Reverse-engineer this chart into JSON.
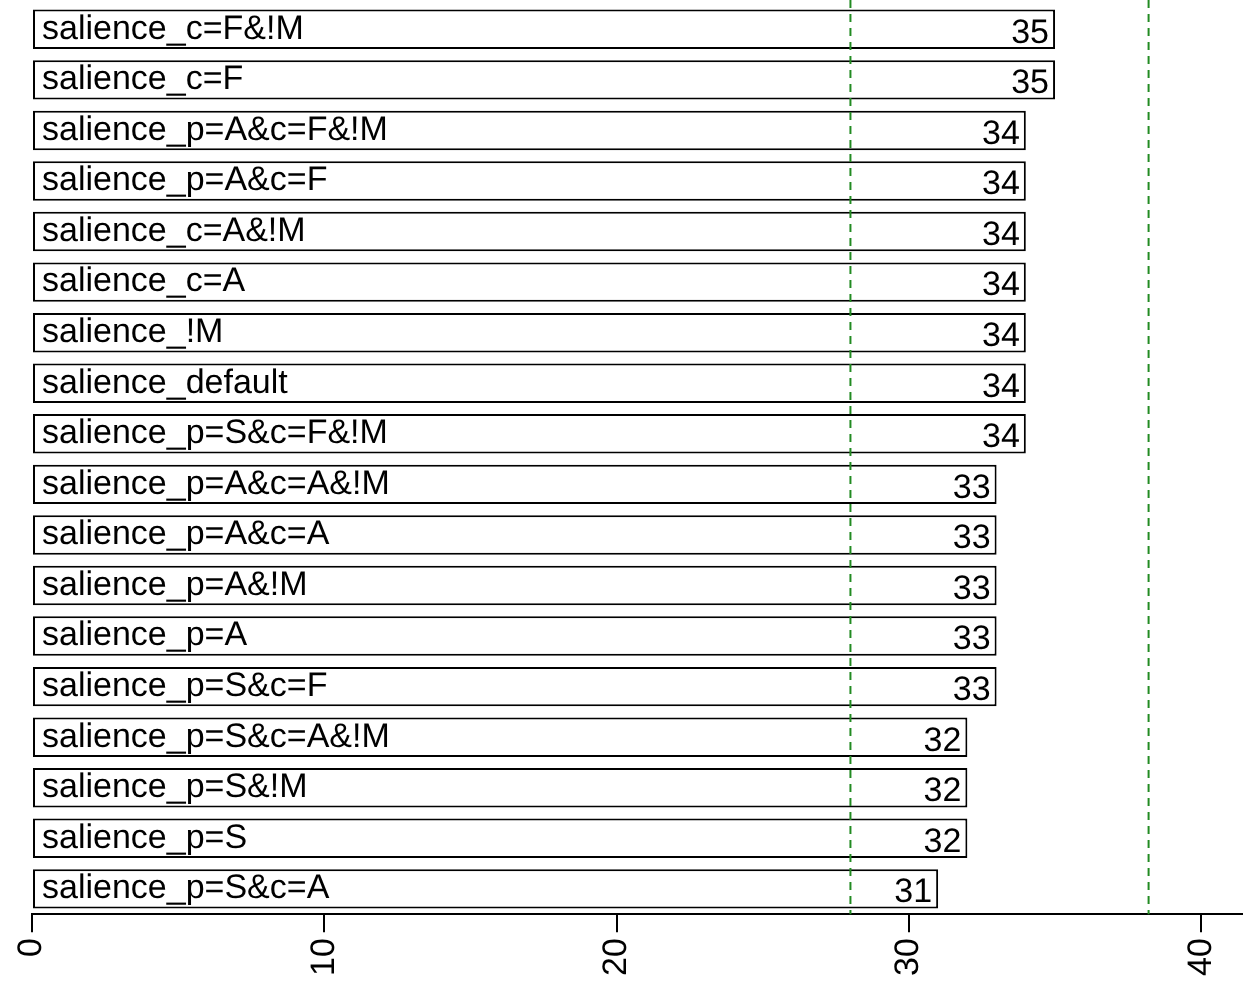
{
  "chart_data": {
    "type": "bar",
    "orientation": "horizontal",
    "categories": [
      "salience_c=F&!M",
      "salience_c=F",
      "salience_p=A&c=F&!M",
      "salience_p=A&c=F",
      "salience_c=A&!M",
      "salience_c=A",
      "salience_!M",
      "salience_default",
      "salience_p=S&c=F&!M",
      "salience_p=A&c=A&!M",
      "salience_p=A&c=A",
      "salience_p=A&!M",
      "salience_p=A",
      "salience_p=S&c=F",
      "salience_p=S&c=A&!M",
      "salience_p=S&!M",
      "salience_p=S",
      "salience_p=S&c=A"
    ],
    "values": [
      35,
      35,
      34,
      34,
      34,
      34,
      34,
      34,
      34,
      33,
      33,
      33,
      33,
      33,
      32,
      32,
      32,
      31
    ],
    "color": "#ffffff",
    "data_labels": true,
    "xlim": [
      0,
      41.4
    ],
    "xticks": [
      0,
      10,
      20,
      30,
      40
    ],
    "grid": false,
    "legend": false,
    "ref_lines": [
      {
        "axis": "x",
        "value": 28,
        "color": "#228b22",
        "line_style": "dashed"
      },
      {
        "axis": "x",
        "value": 38.2,
        "color": "#228b22",
        "line_style": "dashed"
      }
    ]
  }
}
